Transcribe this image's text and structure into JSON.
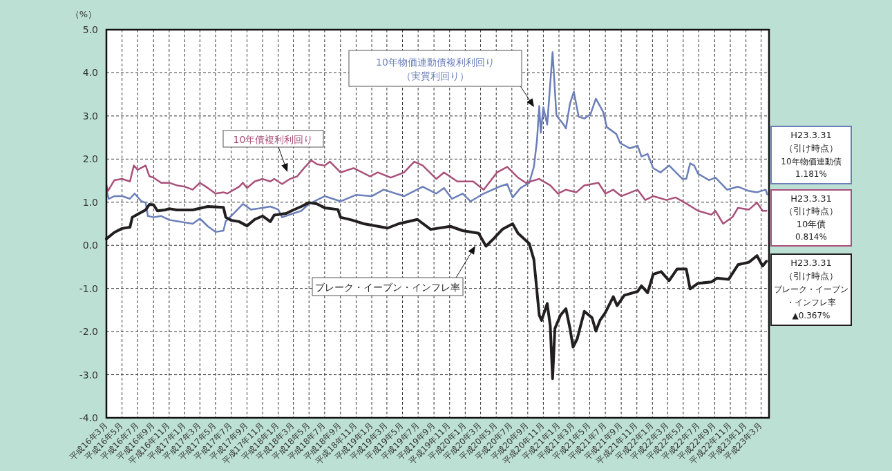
{
  "chart_data": {
    "type": "line",
    "ylabel": "（%）",
    "xlim": [
      "2004-03-01",
      "2011-04-01"
    ],
    "ylim": [
      -4,
      5
    ],
    "yticks": [
      {
        "value": -4,
        "label": "-4.0"
      },
      {
        "value": -3,
        "label": "-3.0"
      },
      {
        "value": -2,
        "label": "-2.0"
      },
      {
        "value": -1,
        "label": "-1.0"
      },
      {
        "value": 0,
        "label": "0.0"
      },
      {
        "value": 1,
        "label": "1.0"
      },
      {
        "value": 2,
        "label": "2.0"
      },
      {
        "value": 3,
        "label": "3.0"
      },
      {
        "value": 4,
        "label": "4.0"
      },
      {
        "value": 5,
        "label": "5.0"
      }
    ],
    "xticks": [
      {
        "value": "2004-03-01",
        "label": "平成16年3月"
      },
      {
        "value": "2004-05-01",
        "label": "平成16年5月"
      },
      {
        "value": "2004-07-01",
        "label": "平成16年7月"
      },
      {
        "value": "2004-09-01",
        "label": "平成16年9月"
      },
      {
        "value": "2004-11-01",
        "label": "平成16年11月"
      },
      {
        "value": "2005-01-01",
        "label": "平成17年1月"
      },
      {
        "value": "2005-03-01",
        "label": "平成17年3月"
      },
      {
        "value": "2005-05-01",
        "label": "平成17年5月"
      },
      {
        "value": "2005-07-01",
        "label": "平成17年7月"
      },
      {
        "value": "2005-09-01",
        "label": "平成17年9月"
      },
      {
        "value": "2005-11-01",
        "label": "平成17年11月"
      },
      {
        "value": "2006-01-01",
        "label": "平成18年1月"
      },
      {
        "value": "2006-03-01",
        "label": "平成18年3月"
      },
      {
        "value": "2006-05-01",
        "label": "平成18年5月"
      },
      {
        "value": "2006-07-01",
        "label": "平成18年7月"
      },
      {
        "value": "2006-09-01",
        "label": "平成18年9月"
      },
      {
        "value": "2006-11-01",
        "label": "平成18年11月"
      },
      {
        "value": "2007-01-01",
        "label": "平成19年1月"
      },
      {
        "value": "2007-03-01",
        "label": "平成19年3月"
      },
      {
        "value": "2007-05-01",
        "label": "平成19年5月"
      },
      {
        "value": "2007-07-01",
        "label": "平成19年7月"
      },
      {
        "value": "2007-09-01",
        "label": "平成19年9月"
      },
      {
        "value": "2007-11-01",
        "label": "平成19年11月"
      },
      {
        "value": "2008-01-01",
        "label": "平成20年1月"
      },
      {
        "value": "2008-03-01",
        "label": "平成20年3月"
      },
      {
        "value": "2008-05-01",
        "label": "平成20年5月"
      },
      {
        "value": "2008-07-01",
        "label": "平成20年7月"
      },
      {
        "value": "2008-09-01",
        "label": "平成20年9月"
      },
      {
        "value": "2008-11-01",
        "label": "平成20年11月"
      },
      {
        "value": "2009-01-01",
        "label": "平成21年1月"
      },
      {
        "value": "2009-03-01",
        "label": "平成21年3月"
      },
      {
        "value": "2009-05-01",
        "label": "平成21年5月"
      },
      {
        "value": "2009-07-01",
        "label": "平成21年7月"
      },
      {
        "value": "2009-09-01",
        "label": "平成21年9月"
      },
      {
        "value": "2009-11-01",
        "label": "平成21年11月"
      },
      {
        "value": "2010-01-01",
        "label": "平成22年1月"
      },
      {
        "value": "2010-03-01",
        "label": "平成22年3月"
      },
      {
        "value": "2010-05-01",
        "label": "平成22年5月"
      },
      {
        "value": "2010-07-01",
        "label": "平成22年7月"
      },
      {
        "value": "2010-09-01",
        "label": "平成22年9月"
      },
      {
        "value": "2010-11-01",
        "label": "平成22年11月"
      },
      {
        "value": "2011-01-01",
        "label": "平成23年1月"
      },
      {
        "value": "2011-03-01",
        "label": "平成23年3月"
      }
    ],
    "grid": true,
    "line_style": "solid",
    "series": [
      {
        "color": "#6b7fb8",
        "x": [
          "2004-03-01",
          "2004-03-10",
          "2004-04-01",
          "2004-05-01",
          "2004-06-01",
          "2004-06-19",
          "2004-07-16",
          "2004-08-01",
          "2004-08-10",
          "2004-09-01",
          "2004-10-01",
          "2004-11-01",
          "2004-12-01",
          "2005-01-01",
          "2005-02-01",
          "2005-03-01",
          "2005-04-01",
          "2005-05-01",
          "2005-06-01",
          "2005-06-10",
          "2005-07-01",
          "2005-08-16",
          "2005-09-16",
          "2005-11-01",
          "2005-12-01",
          "2006-01-01",
          "2006-01-16",
          "2006-03-01",
          "2006-04-01",
          "2006-05-01",
          "2006-06-01",
          "2006-07-01",
          "2006-09-01",
          "2006-11-01",
          "2007-01-01",
          "2007-02-16",
          "2007-05-07",
          "2007-07-19",
          "2007-09-10",
          "2007-10-10",
          "2007-11-10",
          "2007-12-22",
          "2008-01-22",
          "2008-03-13",
          "2008-05-13",
          "2008-06-13",
          "2008-07-04",
          "2008-08-04",
          "2008-09-07",
          "2008-09-25",
          "2008-10-07",
          "2008-10-16",
          "2008-10-22",
          "2008-11-01",
          "2008-11-16",
          "2008-12-07",
          "2008-12-22",
          "2009-01-19",
          "2009-01-28",
          "2009-02-13",
          "2009-02-28",
          "2009-03-19",
          "2009-04-10",
          "2009-05-04",
          "2009-05-25",
          "2009-06-22",
          "2009-07-07",
          "2009-08-13",
          "2009-08-28",
          "2009-10-04",
          "2009-11-04",
          "2009-11-19",
          "2009-12-13",
          "2010-01-04",
          "2010-02-01",
          "2010-03-07",
          "2010-04-28",
          "2010-05-13",
          "2010-05-28",
          "2010-06-13",
          "2010-06-28",
          "2010-08-10",
          "2010-09-04",
          "2010-10-19",
          "2010-12-01",
          "2011-01-13",
          "2011-02-13",
          "2011-03-19",
          "2011-03-25"
        ],
        "values": [
          1.29,
          1.08,
          1.14,
          1.14,
          1.08,
          1.2,
          1.02,
          0.99,
          0.68,
          0.65,
          0.68,
          0.59,
          0.56,
          0.53,
          0.5,
          0.62,
          0.44,
          0.31,
          0.34,
          0.56,
          0.68,
          0.96,
          0.83,
          0.87,
          0.9,
          0.83,
          0.65,
          0.74,
          0.8,
          0.96,
          1.05,
          1.14,
          1.02,
          1.17,
          1.14,
          1.29,
          1.14,
          1.36,
          1.2,
          1.33,
          1.08,
          1.2,
          1.02,
          1.2,
          1.36,
          1.42,
          1.11,
          1.33,
          1.45,
          1.82,
          2.43,
          3.23,
          2.61,
          3.2,
          2.8,
          4.48,
          3.01,
          2.8,
          2.71,
          3.29,
          3.56,
          2.98,
          2.94,
          3.04,
          3.4,
          3.1,
          2.74,
          2.58,
          2.37,
          2.25,
          2.31,
          2.06,
          2.12,
          1.79,
          1.69,
          1.85,
          1.54,
          1.54,
          1.9,
          1.85,
          1.66,
          1.51,
          1.57,
          1.29,
          1.36,
          1.26,
          1.23,
          1.29,
          1.18
        ]
      },
      {
        "color": "#a8507a",
        "x": [
          "2004-03-01",
          "2004-03-07",
          "2004-04-01",
          "2004-05-01",
          "2004-06-01",
          "2004-06-16",
          "2004-07-01",
          "2004-08-01",
          "2004-08-16",
          "2004-09-01",
          "2004-10-01",
          "2004-11-01",
          "2004-12-01",
          "2005-01-01",
          "2005-02-01",
          "2005-03-01",
          "2005-04-01",
          "2005-05-01",
          "2005-06-01",
          "2005-06-16",
          "2005-08-01",
          "2005-08-16",
          "2005-09-01",
          "2005-10-01",
          "2005-11-01",
          "2005-12-01",
          "2005-12-16",
          "2006-01-16",
          "2006-02-16",
          "2006-03-16",
          "2006-04-16",
          "2006-05-10",
          "2006-06-01",
          "2006-07-01",
          "2006-07-22",
          "2006-09-01",
          "2006-10-22",
          "2006-12-25",
          "2007-01-25",
          "2007-03-16",
          "2007-05-07",
          "2007-06-16",
          "2007-07-19",
          "2007-09-10",
          "2007-10-10",
          "2007-12-01",
          "2008-02-01",
          "2008-03-13",
          "2008-05-04",
          "2008-06-13",
          "2008-07-25",
          "2008-08-25",
          "2008-10-16",
          "2008-11-28",
          "2008-12-28",
          "2009-01-28",
          "2009-03-10",
          "2009-04-10",
          "2009-06-04",
          "2009-07-01",
          "2009-08-01",
          "2009-09-01",
          "2009-11-04",
          "2009-12-04",
          "2010-01-04",
          "2010-02-25",
          "2010-04-01",
          "2010-05-07",
          "2010-06-28",
          "2010-08-19",
          "2010-09-04",
          "2010-10-04",
          "2010-11-10",
          "2010-12-01",
          "2011-01-13",
          "2011-02-13",
          "2011-03-07",
          "2011-03-22"
        ],
        "values": [
          1.39,
          1.26,
          1.51,
          1.54,
          1.48,
          1.85,
          1.75,
          1.85,
          1.6,
          1.57,
          1.45,
          1.45,
          1.39,
          1.36,
          1.29,
          1.45,
          1.33,
          1.2,
          1.23,
          1.2,
          1.36,
          1.45,
          1.33,
          1.48,
          1.54,
          1.48,
          1.54,
          1.42,
          1.54,
          1.6,
          1.82,
          1.97,
          1.88,
          1.85,
          1.94,
          1.69,
          1.79,
          1.6,
          1.69,
          1.57,
          1.69,
          1.94,
          1.85,
          1.54,
          1.69,
          1.48,
          1.48,
          1.29,
          1.69,
          1.82,
          1.57,
          1.45,
          1.54,
          1.39,
          1.2,
          1.29,
          1.23,
          1.39,
          1.45,
          1.2,
          1.29,
          1.14,
          1.29,
          1.05,
          1.14,
          1.05,
          1.11,
          0.99,
          0.8,
          0.71,
          0.8,
          0.5,
          0.66,
          0.87,
          0.83,
          0.99,
          0.8,
          0.8
        ]
      },
      {
        "color": "#231f20",
        "x": [
          "2004-03-01",
          "2004-04-01",
          "2004-05-01",
          "2004-06-01",
          "2004-06-10",
          "2004-07-01",
          "2004-08-01",
          "2004-08-16",
          "2004-09-01",
          "2004-09-16",
          "2004-10-16",
          "2004-11-01",
          "2004-12-01",
          "2005-02-01",
          "2005-04-01",
          "2005-06-01",
          "2005-06-10",
          "2005-07-01",
          "2005-08-01",
          "2005-09-01",
          "2005-10-01",
          "2005-11-01",
          "2005-12-01",
          "2005-12-16",
          "2006-02-01",
          "2006-03-01",
          "2006-04-01",
          "2006-05-01",
          "2006-06-01",
          "2006-07-01",
          "2006-08-22",
          "2006-09-01",
          "2006-10-13",
          "2006-12-01",
          "2007-03-04",
          "2007-04-16",
          "2007-06-28",
          "2007-08-19",
          "2007-11-04",
          "2007-12-22",
          "2008-02-22",
          "2008-03-22",
          "2008-04-22",
          "2008-05-25",
          "2008-07-04",
          "2008-07-25",
          "2008-09-07",
          "2008-09-25",
          "2008-10-16",
          "2008-10-25",
          "2008-11-16",
          "2008-11-28",
          "2008-12-07",
          "2008-12-16",
          "2009-01-07",
          "2009-01-28",
          "2009-02-13",
          "2009-02-25",
          "2009-03-13",
          "2009-04-10",
          "2009-05-10",
          "2009-05-25",
          "2009-06-10",
          "2009-07-01",
          "2009-08-01",
          "2009-08-16",
          "2009-09-13",
          "2009-11-04",
          "2009-11-19",
          "2009-12-13",
          "2010-01-04",
          "2010-02-04",
          "2010-03-07",
          "2010-04-07",
          "2010-05-13",
          "2010-05-28",
          "2010-06-28",
          "2010-08-19",
          "2010-09-10",
          "2010-10-25",
          "2010-12-01",
          "2011-01-13",
          "2011-02-13",
          "2011-03-07",
          "2011-03-22"
        ],
        "values": [
          0.15,
          0.3,
          0.39,
          0.42,
          0.65,
          0.72,
          0.82,
          0.95,
          0.94,
          0.8,
          0.82,
          0.85,
          0.82,
          0.82,
          0.9,
          0.88,
          0.65,
          0.58,
          0.55,
          0.45,
          0.6,
          0.68,
          0.55,
          0.7,
          0.74,
          0.82,
          0.9,
          0.99,
          0.96,
          0.87,
          0.83,
          0.65,
          0.59,
          0.5,
          0.4,
          0.5,
          0.6,
          0.37,
          0.44,
          0.34,
          0.28,
          -0.02,
          0.16,
          0.37,
          0.5,
          0.28,
          0.04,
          -0.33,
          -1.62,
          -1.74,
          -1.35,
          -1.87,
          -3.09,
          -1.93,
          -1.62,
          -1.47,
          -1.93,
          -2.36,
          -2.17,
          -1.53,
          -1.68,
          -1.99,
          -1.74,
          -1.56,
          -1.19,
          -1.4,
          -1.16,
          -1.07,
          -0.94,
          -1.1,
          -0.67,
          -0.61,
          -0.82,
          -0.55,
          -0.55,
          -1.01,
          -0.88,
          -0.85,
          -0.76,
          -0.79,
          -0.45,
          -0.39,
          -0.24,
          -0.48,
          -0.37
        ]
      }
    ],
    "annotations": [
      "10年物価連動債複利利回り（実質利回り）",
      "10年債複利利回り",
      "ブレーク・イーブン・インフレ率",
      "H23.3.31（引け時点）10年物価連動債1.181%",
      "H23.3.31（引け時点）10年債0.814%",
      "H23.3.31（引け時点）ブレーク・イーブン・インフレ率▲0.367%"
    ]
  }
}
